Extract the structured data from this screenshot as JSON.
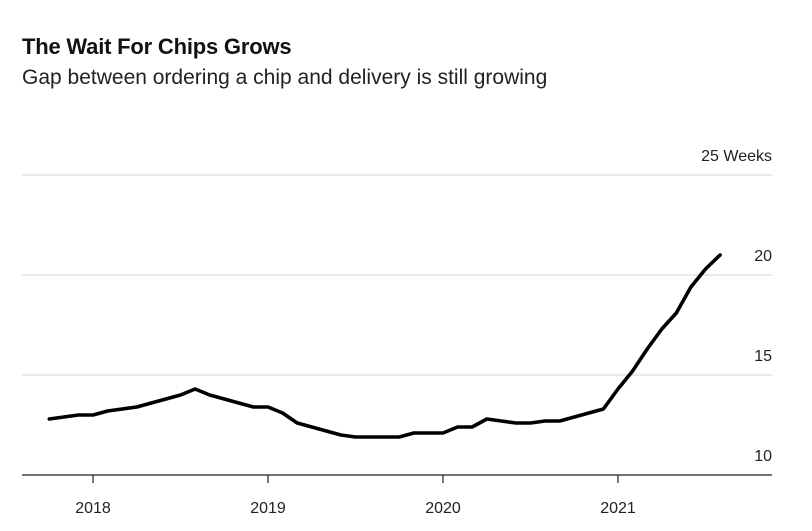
{
  "header": {
    "title": "The Wait For Chips Grows",
    "subtitle": "Gap between ordering a chip and delivery is still growing"
  },
  "chart_data": {
    "type": "line",
    "title": "The Wait For Chips Grows",
    "subtitle": "Gap between ordering a chip and delivery is still growing",
    "xlabel": "",
    "ylabel": "",
    "unit": "Weeks",
    "ylim": [
      10,
      25
    ],
    "yticks": [
      10,
      15,
      20,
      25
    ],
    "ytick_labels": [
      "10",
      "15",
      "20",
      "25 Weeks"
    ],
    "xticks": [
      2018,
      2019,
      2020,
      2021
    ],
    "xtick_labels": [
      "2018",
      "2019",
      "2020",
      "2021"
    ],
    "grid": true,
    "legend": "none",
    "color": "#000000",
    "series": [
      {
        "x": [
          "2017-10",
          "2017-11",
          "2017-12",
          "2018-01",
          "2018-02",
          "2018-03",
          "2018-04",
          "2018-05",
          "2018-06",
          "2018-07",
          "2018-08",
          "2018-09",
          "2018-10",
          "2018-11",
          "2018-12",
          "2019-01",
          "2019-02",
          "2019-03",
          "2019-04",
          "2019-05",
          "2019-06",
          "2019-07",
          "2019-08",
          "2019-09",
          "2019-10",
          "2019-11",
          "2019-12",
          "2020-01",
          "2020-02",
          "2020-03",
          "2020-04",
          "2020-05",
          "2020-06",
          "2020-07",
          "2020-08",
          "2020-09",
          "2020-10",
          "2020-11",
          "2020-12",
          "2021-01",
          "2021-02",
          "2021-03",
          "2021-04",
          "2021-05",
          "2021-06",
          "2021-07",
          "2021-08"
        ],
        "y": [
          12.8,
          12.9,
          13.0,
          13.0,
          13.2,
          13.3,
          13.4,
          13.6,
          13.8,
          14.0,
          14.3,
          14.0,
          13.8,
          13.6,
          13.4,
          13.4,
          13.1,
          12.6,
          12.4,
          12.2,
          12.0,
          11.9,
          11.9,
          11.9,
          11.9,
          12.1,
          12.1,
          12.1,
          12.4,
          12.4,
          12.8,
          12.7,
          12.6,
          12.6,
          12.7,
          12.7,
          12.9,
          13.1,
          13.3,
          14.3,
          15.2,
          16.3,
          17.3,
          18.1,
          19.4,
          20.3,
          21.0
        ]
      }
    ]
  }
}
